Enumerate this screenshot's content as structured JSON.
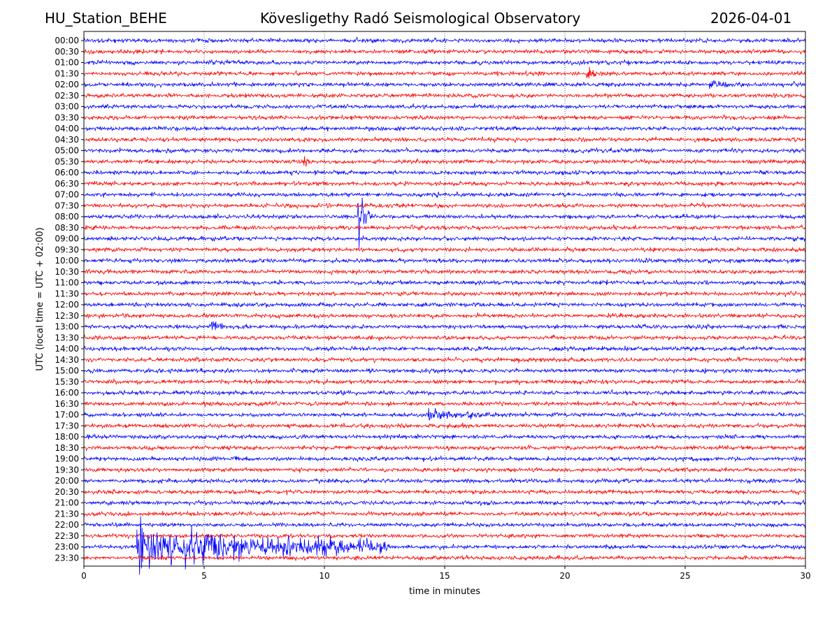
{
  "chart_data": {
    "type": "line",
    "title": "Kövesligethy Radó Seismological Observatory",
    "station": "HU_Station_BEHE",
    "date": "2026-04-01",
    "xlabel": "time in minutes",
    "ylabel": "UTC (local time = UTC + 02:00)",
    "xlim": [
      0,
      30
    ],
    "x_ticks": [
      0,
      5,
      10,
      15,
      20,
      25,
      30
    ],
    "grid": "vertical dotted lines at x ticks",
    "colors": [
      "#0000ff",
      "#ff0000"
    ],
    "row_labels": [
      "00:00",
      "00:30",
      "01:00",
      "01:30",
      "02:00",
      "02:30",
      "03:00",
      "03:30",
      "04:00",
      "04:30",
      "05:00",
      "05:30",
      "06:00",
      "06:30",
      "07:00",
      "07:30",
      "08:00",
      "08:30",
      "09:00",
      "09:30",
      "10:00",
      "10:30",
      "11:00",
      "11:30",
      "12:00",
      "12:30",
      "13:00",
      "13:30",
      "14:00",
      "14:30",
      "15:00",
      "15:30",
      "16:00",
      "16:30",
      "17:00",
      "17:30",
      "18:00",
      "18:30",
      "19:00",
      "19:30",
      "20:00",
      "20:30",
      "21:00",
      "21:30",
      "22:00",
      "22:30",
      "23:00",
      "23:30"
    ],
    "events": [
      {
        "row": "08:00",
        "start_min": 11.4,
        "duration_min": 0.8,
        "amplitude": "large"
      },
      {
        "row": "23:00",
        "start_min": 2.2,
        "duration_min": 10.5,
        "amplitude": "very large"
      },
      {
        "row": "17:00",
        "start_min": 14.3,
        "duration_min": 3.5,
        "amplitude": "moderate"
      },
      {
        "row": "13:00",
        "start_min": 5.3,
        "duration_min": 1.5,
        "amplitude": "moderate"
      },
      {
        "row": "05:30",
        "start_min": 9.1,
        "duration_min": 0.5,
        "amplitude": "moderate"
      },
      {
        "row": "01:30",
        "start_min": 20.9,
        "duration_min": 0.8,
        "amplitude": "moderate"
      },
      {
        "row": "02:00",
        "start_min": 26.0,
        "duration_min": 1.8,
        "amplitude": "moderate"
      }
    ]
  }
}
